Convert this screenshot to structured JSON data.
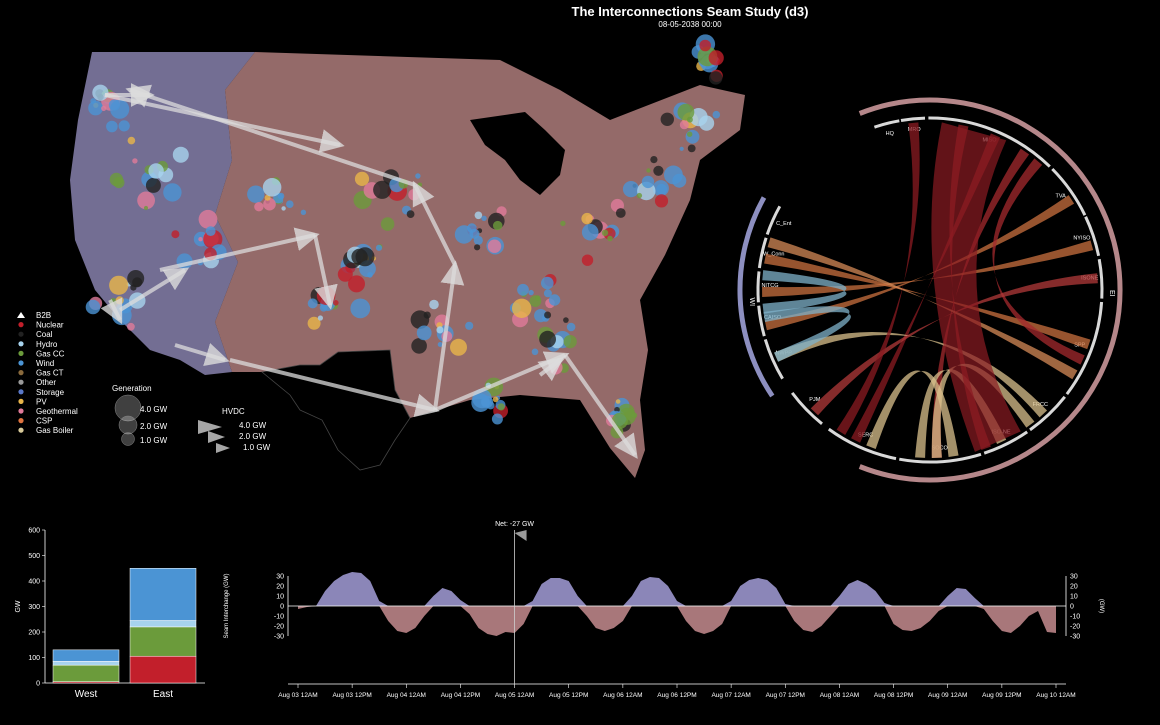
{
  "header": {
    "title": "The Interconnections Seam Study (d3)",
    "timestamp": "08-05-2038 00:00"
  },
  "colors": {
    "west": "#9a93c4",
    "east": "#b98483",
    "west_interchange": "#8b86b8",
    "east_interchange": "#a8777a",
    "hydro": "#a7d3ee",
    "wind": "#4b94d4",
    "gascc": "#6b9b3b",
    "nuclear": "#c21f2b",
    "coal": "#222222",
    "gasct": "#8a6a3c",
    "storage": "#5a78c8",
    "pv": "#e8b54a",
    "geothermal": "#e07a9a",
    "csp": "#e07440",
    "gasboiler": "#d8ca9a",
    "other": "#9a9a9a",
    "hvdc": "#dcdcdc",
    "chord_rim": "#b5878a",
    "chord_rim_west": "#8d8fc0"
  },
  "legend": {
    "fuel_items": [
      {
        "label": "B2B",
        "icon": "triangle-icon",
        "color": "#ffffff"
      },
      {
        "label": "Nuclear",
        "icon": "dot-icon",
        "color": "#c21f2b"
      },
      {
        "label": "Coal",
        "icon": "dot-icon",
        "color": "#222222"
      },
      {
        "label": "Hydro",
        "icon": "dot-icon",
        "color": "#a7d3ee"
      },
      {
        "label": "Gas CC",
        "icon": "dot-icon",
        "color": "#6b9b3b"
      },
      {
        "label": "Wind",
        "icon": "dot-icon",
        "color": "#4b94d4"
      },
      {
        "label": "Gas CT",
        "icon": "dot-icon",
        "color": "#8a6a3c"
      },
      {
        "label": "Other",
        "icon": "dot-icon",
        "color": "#9a9a9a"
      },
      {
        "label": "Storage",
        "icon": "dot-icon",
        "color": "#5a78c8"
      },
      {
        "label": "PV",
        "icon": "dot-icon",
        "color": "#e8b54a"
      },
      {
        "label": "Geothermal",
        "icon": "dot-icon",
        "color": "#e07a9a"
      },
      {
        "label": "CSP",
        "icon": "dot-icon",
        "color": "#e07440"
      },
      {
        "label": "Gas Boiler",
        "icon": "dot-icon",
        "color": "#d8ca9a"
      }
    ],
    "generation": {
      "title": "Generation",
      "items": [
        "4.0 GW",
        "2.0 GW",
        "1.0 GW"
      ]
    },
    "hvdc": {
      "title": "HVDC",
      "items": [
        "4.0 GW",
        "2.0 GW",
        "1.0 GW"
      ]
    }
  },
  "chord": {
    "west_label": "WI",
    "east_label": "EI",
    "regions": [
      "HQ",
      "MRO",
      "MISO",
      "TVA",
      "NYISO",
      "ISONE",
      "SPP",
      "FRCC",
      "ISO-NE",
      "SOCO",
      "SERC",
      "PJM",
      "NWPP",
      "CAISO",
      "NITCG",
      "W_Conn",
      "C_Ent"
    ]
  },
  "chart_data": [
    {
      "type": "bar",
      "stacked": true,
      "categories": [
        "West",
        "East"
      ],
      "ylabel": "GW",
      "ylim": [
        0,
        600
      ],
      "yticks": [
        0,
        100,
        200,
        300,
        400,
        500,
        600
      ],
      "series": [
        {
          "color": "#c21f2b",
          "values": [
            5,
            105
          ]
        },
        {
          "color": "#6b9b3b",
          "values": [
            65,
            115
          ]
        },
        {
          "color": "#a7d3ee",
          "values": [
            15,
            25
          ]
        },
        {
          "color": "#4b94d4",
          "values": [
            45,
            205
          ]
        }
      ]
    },
    {
      "type": "area",
      "ylabel": "Seam Interchange (GW)",
      "ylabel_right": "(GW)",
      "ylim": [
        -30,
        30
      ],
      "yticks": [
        -30,
        -20,
        -10,
        0,
        10,
        20,
        30
      ],
      "x_tick_labels": [
        "Aug 03 12AM",
        "Aug 03 12PM",
        "Aug 04 12AM",
        "Aug 04 12PM",
        "Aug 05 12AM",
        "Aug 05 12PM",
        "Aug 06 12AM",
        "Aug 06 12PM",
        "Aug 07 12AM",
        "Aug 07 12PM",
        "Aug 08 12AM",
        "Aug 08 12PM",
        "Aug 09 12AM",
        "Aug 09 12PM",
        "Aug 10 12AM"
      ],
      "cursor": {
        "label": "Net: -27 GW",
        "x_hours": 48
      },
      "x_hours": [
        0,
        2,
        4,
        6,
        8,
        10,
        12,
        14,
        16,
        18,
        20,
        22,
        24,
        26,
        28,
        30,
        32,
        34,
        36,
        38,
        40,
        42,
        44,
        46,
        48,
        50,
        52,
        54,
        56,
        58,
        60,
        62,
        64,
        66,
        68,
        70,
        72,
        74,
        76,
        78,
        80,
        82,
        84,
        86,
        88,
        90,
        92,
        94,
        96,
        98,
        100,
        102,
        104,
        106,
        108,
        110,
        112,
        114,
        116,
        118,
        120,
        122,
        124,
        126,
        128,
        130,
        132,
        134,
        136,
        138,
        140,
        142,
        144,
        146,
        148,
        150,
        152,
        154,
        156,
        158,
        160,
        162,
        164,
        166,
        168
      ],
      "values": [
        -3,
        -1,
        0,
        15,
        25,
        31,
        34,
        33,
        25,
        5,
        -15,
        -25,
        -27,
        -22,
        -10,
        10,
        18,
        15,
        6,
        -8,
        -22,
        -28,
        -30,
        -26,
        -27,
        -18,
        5,
        22,
        28,
        28,
        25,
        10,
        -10,
        -22,
        -25,
        -22,
        -15,
        10,
        25,
        29,
        28,
        20,
        5,
        -15,
        -25,
        -28,
        -25,
        -18,
        5,
        20,
        26,
        28,
        26,
        18,
        2,
        -15,
        -24,
        -26,
        -20,
        -10,
        10,
        22,
        26,
        22,
        15,
        3,
        -18,
        -24,
        -25,
        -22,
        -15,
        -5,
        10,
        18,
        17,
        8,
        -3,
        -15,
        -25,
        -27,
        -20,
        -10,
        -5,
        -26,
        -27
      ]
    }
  ]
}
